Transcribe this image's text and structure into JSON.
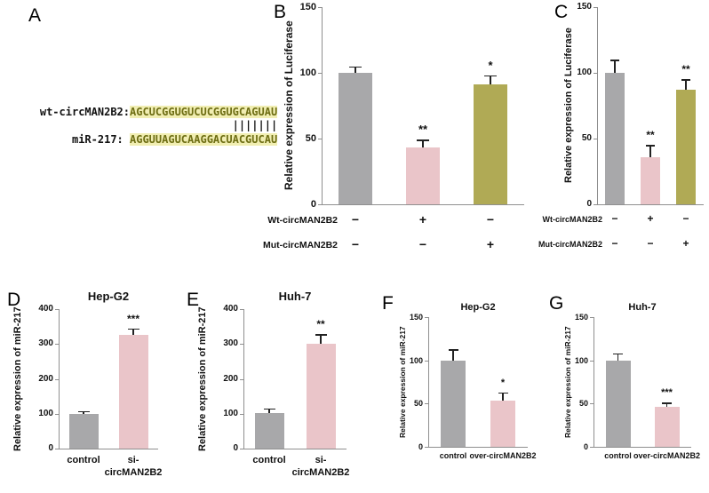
{
  "figure": {
    "background": "#ffffff",
    "colors": {
      "gray": "#a8a8aa",
      "pink": "#eac5c9",
      "olive": "#b0aa55",
      "axis": "#8f8f8f",
      "error": "#222222",
      "seq_bg": "#f1eeb2",
      "seq_text": "#6e6e14"
    }
  },
  "panel_a": {
    "label": "A",
    "wt_name": "wt-circMAN2B2:",
    "wt_seq": "AGCUCGGUGUCUCGGUGCAGUAU",
    "alignment": "|||||||",
    "mir_name": "miR-217: ",
    "mir_seq": "AGGUUAGUCAAGGACUACGUCAU"
  },
  "chart_data": [
    {
      "id": "B",
      "panel_label": "B",
      "type": "bar",
      "title": "",
      "ylabel": "Relative expression of Luciferase",
      "ylim": [
        0,
        150
      ],
      "yticks": [
        0,
        50,
        100,
        150
      ],
      "values": [
        100,
        43,
        91
      ],
      "errors": [
        5,
        6,
        7
      ],
      "sig": [
        "",
        "**",
        "*"
      ],
      "bar_colors": [
        "gray",
        "pink",
        "olive"
      ],
      "x_matrix": [
        {
          "label": "Wt-circMAN2B2",
          "signs": [
            "−",
            "+",
            "−"
          ]
        },
        {
          "label": "Mut-circMAN2B2",
          "signs": [
            "−",
            "−",
            "+"
          ]
        }
      ]
    },
    {
      "id": "C",
      "panel_label": "C",
      "type": "bar",
      "title": "",
      "ylabel": "Relative expression of Luciferase",
      "ylim": [
        0,
        150
      ],
      "yticks": [
        0,
        50,
        100,
        150
      ],
      "values": [
        100,
        36,
        87
      ],
      "errors": [
        10,
        9,
        8
      ],
      "sig": [
        "",
        "**",
        "**"
      ],
      "bar_colors": [
        "gray",
        "pink",
        "olive"
      ],
      "x_matrix": [
        {
          "label": "Wt-circMAN2B2",
          "signs": [
            "−",
            "+",
            "−"
          ]
        },
        {
          "label": "Mut-circMAN2B2",
          "signs": [
            "−",
            "−",
            "+"
          ]
        }
      ]
    },
    {
      "id": "D",
      "panel_label": "D",
      "type": "bar",
      "title": "Hep-G2",
      "ylabel": "Relative expression of miR-217",
      "ylim": [
        0,
        400
      ],
      "yticks": [
        0,
        100,
        200,
        300,
        400
      ],
      "values": [
        100,
        325
      ],
      "errors": [
        8,
        20
      ],
      "sig": [
        "",
        "***"
      ],
      "bar_colors": [
        "gray",
        "pink"
      ],
      "categories": [
        "control",
        "si-\ncircMAN2B2"
      ]
    },
    {
      "id": "E",
      "panel_label": "E",
      "type": "bar",
      "title": "Huh-7",
      "ylabel": "Relative expression of miR-217",
      "ylim": [
        0,
        400
      ],
      "yticks": [
        0,
        100,
        200,
        300,
        400
      ],
      "values": [
        103,
        300
      ],
      "errors": [
        12,
        28
      ],
      "sig": [
        "",
        "**"
      ],
      "bar_colors": [
        "gray",
        "pink"
      ],
      "categories": [
        "control",
        "si-\ncircMAN2B2"
      ]
    },
    {
      "id": "F",
      "panel_label": "F",
      "type": "bar",
      "title": "Hep-G2",
      "ylabel": "Relative expression of miR-217",
      "ylim": [
        0,
        150
      ],
      "yticks": [
        0,
        50,
        100,
        150
      ],
      "values": [
        100,
        53
      ],
      "errors": [
        13,
        10
      ],
      "sig": [
        "",
        "*"
      ],
      "bar_colors": [
        "gray",
        "pink"
      ],
      "categories": [
        "control",
        "over-circMAN2B2"
      ]
    },
    {
      "id": "G",
      "panel_label": "G",
      "type": "bar",
      "title": "Huh-7",
      "ylabel": "Relative expression of miR-217",
      "ylim": [
        0,
        150
      ],
      "yticks": [
        0,
        50,
        100,
        150
      ],
      "values": [
        100,
        46
      ],
      "errors": [
        8,
        5
      ],
      "sig": [
        "",
        "***"
      ],
      "bar_colors": [
        "gray",
        "pink"
      ],
      "categories": [
        "control",
        "over-circMAN2B2"
      ]
    }
  ]
}
